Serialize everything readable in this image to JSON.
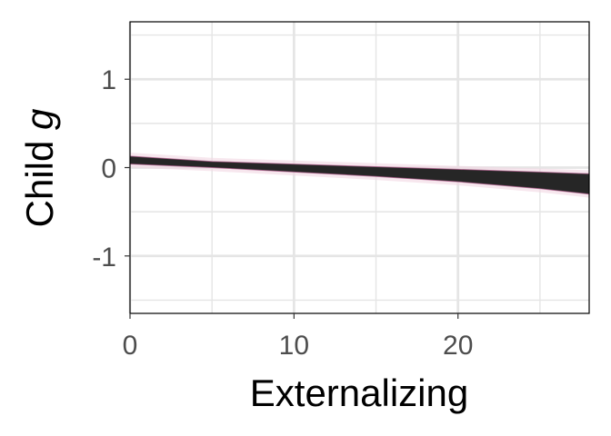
{
  "chart_data": {
    "type": "area",
    "title": "",
    "xlabel": "Externalizing",
    "ylabel_prefix": "Child ",
    "ylabel_italic": "g",
    "xlim": [
      0,
      28
    ],
    "ylim": [
      -1.65,
      1.65
    ],
    "x_ticks": [
      0,
      10,
      20
    ],
    "x_tick_labels": [
      "0",
      "10",
      "20"
    ],
    "x_minor_gridlines": [
      5,
      15,
      25
    ],
    "y_ticks": [
      -1,
      0,
      1
    ],
    "y_tick_labels": [
      "-1",
      "0",
      "1"
    ],
    "y_minor_gridlines": [
      -1.5,
      -0.5,
      0.5,
      1.5
    ],
    "grid": true,
    "series": [
      {
        "band": true,
        "x": [
          0,
          5,
          10,
          15,
          20,
          25,
          28
        ],
        "upper": [
          0.13,
          0.07,
          0.04,
          0.01,
          -0.02,
          -0.05,
          -0.07
        ],
        "lower": [
          0.04,
          0.0,
          -0.05,
          -0.1,
          -0.16,
          -0.24,
          -0.3
        ]
      }
    ],
    "colors": {
      "band_fill": "#262626",
      "band_edge": "#b05a8c",
      "halo": "#f2d7e3",
      "grid": "#e5e5e5",
      "frame": "#000000"
    }
  }
}
